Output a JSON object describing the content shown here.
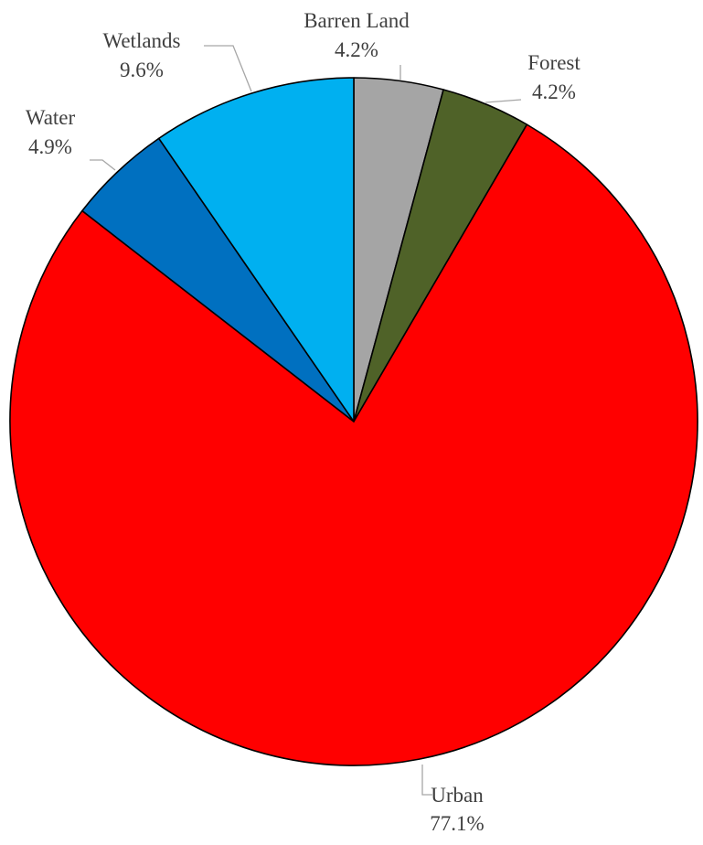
{
  "chart_data": {
    "type": "pie",
    "title": "",
    "start_angle_deg": 0,
    "direction": "clockwise",
    "slices": [
      {
        "label": "Barren Land",
        "value": 4.2,
        "value_label": "4.2%",
        "color": "#a5a5a5"
      },
      {
        "label": "Forest",
        "value": 4.2,
        "value_label": "4.2%",
        "color": "#4f6228"
      },
      {
        "label": "Urban",
        "value": 77.1,
        "value_label": "77.1%",
        "color": "#ff0000"
      },
      {
        "label": "Water",
        "value": 4.9,
        "value_label": "4.9%",
        "color": "#0070c0"
      },
      {
        "label": "Wetlands",
        "value": 9.6,
        "value_label": "9.6%",
        "color": "#00b0f0"
      }
    ]
  }
}
